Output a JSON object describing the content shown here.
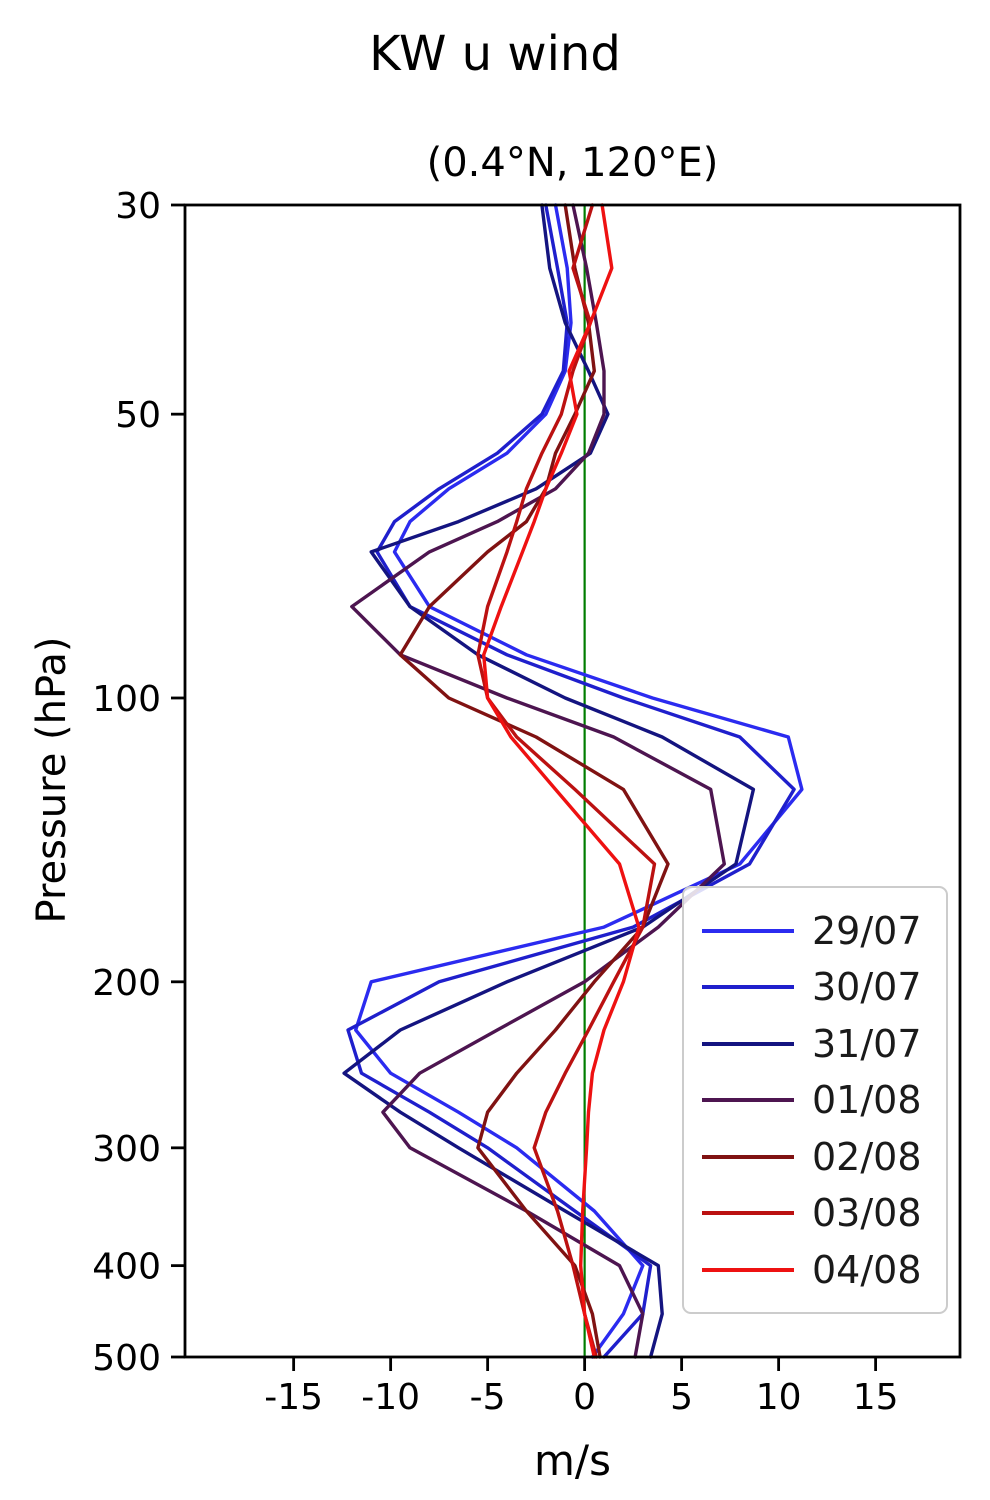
{
  "title": "KW u wind",
  "subtitle": "(0.4°N, 120°E)",
  "xlabel": "m/s",
  "ylabel": "Pressure (hPa)",
  "chart_data": {
    "type": "line",
    "title": "KW u wind",
    "subtitle": "(0.4°N, 120°E)",
    "xlabel": "m/s",
    "ylabel": "Pressure (hPa)",
    "y_scale": "log",
    "y_inverted": true,
    "xlim": [
      -20.6,
      19.35
    ],
    "ylim": [
      30,
      500
    ],
    "x_ticks": [
      -15,
      -10,
      -5,
      0,
      5,
      10,
      15
    ],
    "y_ticks": [
      30,
      50,
      100,
      200,
      300,
      400,
      500
    ],
    "grid": false,
    "legend_position": "lower right",
    "zero_line": {
      "x": 0,
      "color": "#007d00"
    },
    "pressure_levels": [
      30,
      35,
      40,
      45,
      50,
      55,
      60,
      65,
      70,
      80,
      90,
      100,
      110,
      125,
      150,
      175,
      200,
      225,
      250,
      275,
      300,
      350,
      400,
      450,
      500
    ],
    "series": [
      {
        "name": "29/07",
        "color": "#2b2bf0",
        "values": [
          -1.5,
          -0.9,
          -0.7,
          -1.0,
          -2.0,
          -4.0,
          -7.0,
          -9.0,
          -9.8,
          -8.0,
          -3.0,
          3.5,
          10.5,
          11.2,
          8.0,
          1.0,
          -11.0,
          -11.8,
          -10.0,
          -6.5,
          -3.5,
          0.5,
          3.0,
          2.0,
          0.4
        ]
      },
      {
        "name": "30/07",
        "color": "#1f1fcc",
        "values": [
          -2.0,
          -1.4,
          -0.9,
          -1.1,
          -2.2,
          -4.5,
          -7.5,
          -9.8,
          -10.7,
          -9.0,
          -4.0,
          2.0,
          8.0,
          10.8,
          8.5,
          2.5,
          -7.5,
          -12.2,
          -11.5,
          -8.0,
          -5.0,
          -0.5,
          3.4,
          3.0,
          1.0
        ]
      },
      {
        "name": "31/07",
        "color": "#141480",
        "values": [
          -2.2,
          -1.8,
          -1.0,
          0.2,
          1.2,
          0.3,
          -2.5,
          -6.5,
          -11.0,
          -9.0,
          -5.5,
          -1.0,
          4.0,
          8.7,
          7.8,
          3.0,
          -4.0,
          -9.5,
          -12.4,
          -9.5,
          -6.5,
          -1.0,
          3.8,
          4.0,
          3.4
        ]
      },
      {
        "name": "01/08",
        "color": "#4d1550",
        "values": [
          -0.6,
          0.1,
          0.6,
          1.0,
          1.0,
          0.2,
          -1.5,
          -4.5,
          -8.0,
          -12.0,
          -9.5,
          -4.0,
          1.5,
          6.5,
          7.2,
          3.8,
          0.0,
          -4.5,
          -8.5,
          -10.4,
          -9.0,
          -3.0,
          1.8,
          3.0,
          2.6
        ]
      },
      {
        "name": "02/08",
        "color": "#801212",
        "values": [
          -1.0,
          -0.5,
          0.2,
          0.5,
          -0.5,
          -1.5,
          -2.0,
          -3.0,
          -5.0,
          -8.0,
          -9.5,
          -7.0,
          -2.5,
          2.0,
          4.3,
          3.0,
          0.5,
          -1.5,
          -3.5,
          -5.0,
          -5.5,
          -3.0,
          -0.5,
          0.4,
          0.8
        ]
      },
      {
        "name": "03/08",
        "color": "#bb1111",
        "values": [
          0.4,
          -0.6,
          0.3,
          -0.6,
          -1.2,
          -2.2,
          -3.0,
          -3.5,
          -4.0,
          -5.0,
          -5.5,
          -5.0,
          -3.5,
          -0.5,
          3.6,
          3.0,
          1.5,
          0.2,
          -1.0,
          -2.0,
          -2.6,
          -1.4,
          -0.6,
          0.0,
          0.6
        ]
      },
      {
        "name": "04/08",
        "color": "#ee1111",
        "values": [
          0.9,
          1.4,
          0.3,
          -0.8,
          -0.4,
          -1.2,
          -2.0,
          -2.6,
          -3.2,
          -4.3,
          -5.2,
          -5.0,
          -3.8,
          -1.5,
          1.8,
          2.8,
          2.0,
          1.0,
          0.4,
          0.2,
          0.1,
          -0.1,
          -0.2,
          0.0,
          0.5
        ]
      }
    ]
  }
}
